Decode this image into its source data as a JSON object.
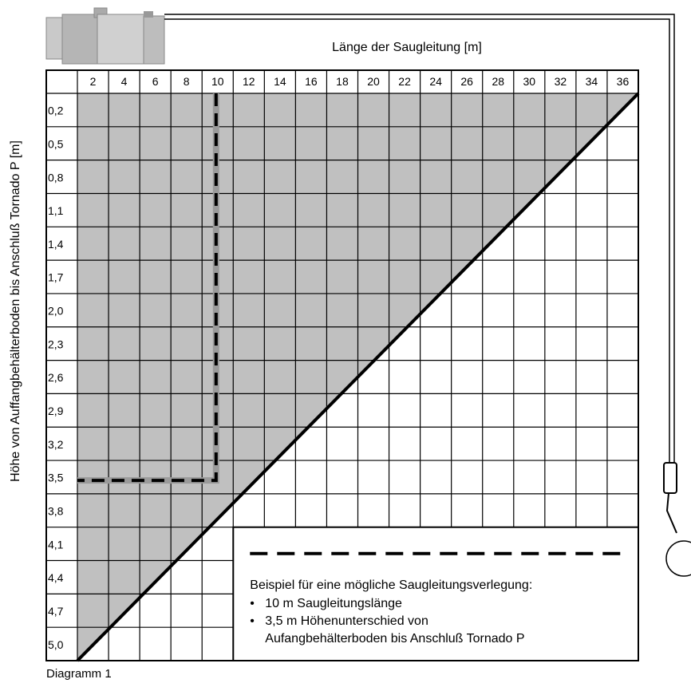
{
  "header": {
    "title": "Länge der Saugleitung [m]",
    "y_label": "Höhe von Auffangbehälterboden bis Anschluß Tornado P [m]"
  },
  "table": {
    "columns": [
      "2",
      "4",
      "6",
      "8",
      "10",
      "12",
      "14",
      "16",
      "18",
      "20",
      "22",
      "24",
      "26",
      "28",
      "30",
      "32",
      "34",
      "36"
    ],
    "rows": [
      "0,2",
      "0,5",
      "0,8",
      "1,1",
      "1,4",
      "1,7",
      "2,0",
      "2,3",
      "2,6",
      "2,9",
      "3,2",
      "3,5",
      "3,8",
      "4,1",
      "4,4",
      "4,7",
      "5,0"
    ]
  },
  "legend": {
    "heading": "Beispiel für eine mögliche Saugleitungsverlegung:",
    "items": [
      [
        "10 m Saugleitungslänge"
      ],
      [
        "3,5 m Höhenunterschied von",
        "Aufangbehälterboden bis Anschluß Tornado P"
      ]
    ]
  },
  "caption": "Diagramm 1"
}
